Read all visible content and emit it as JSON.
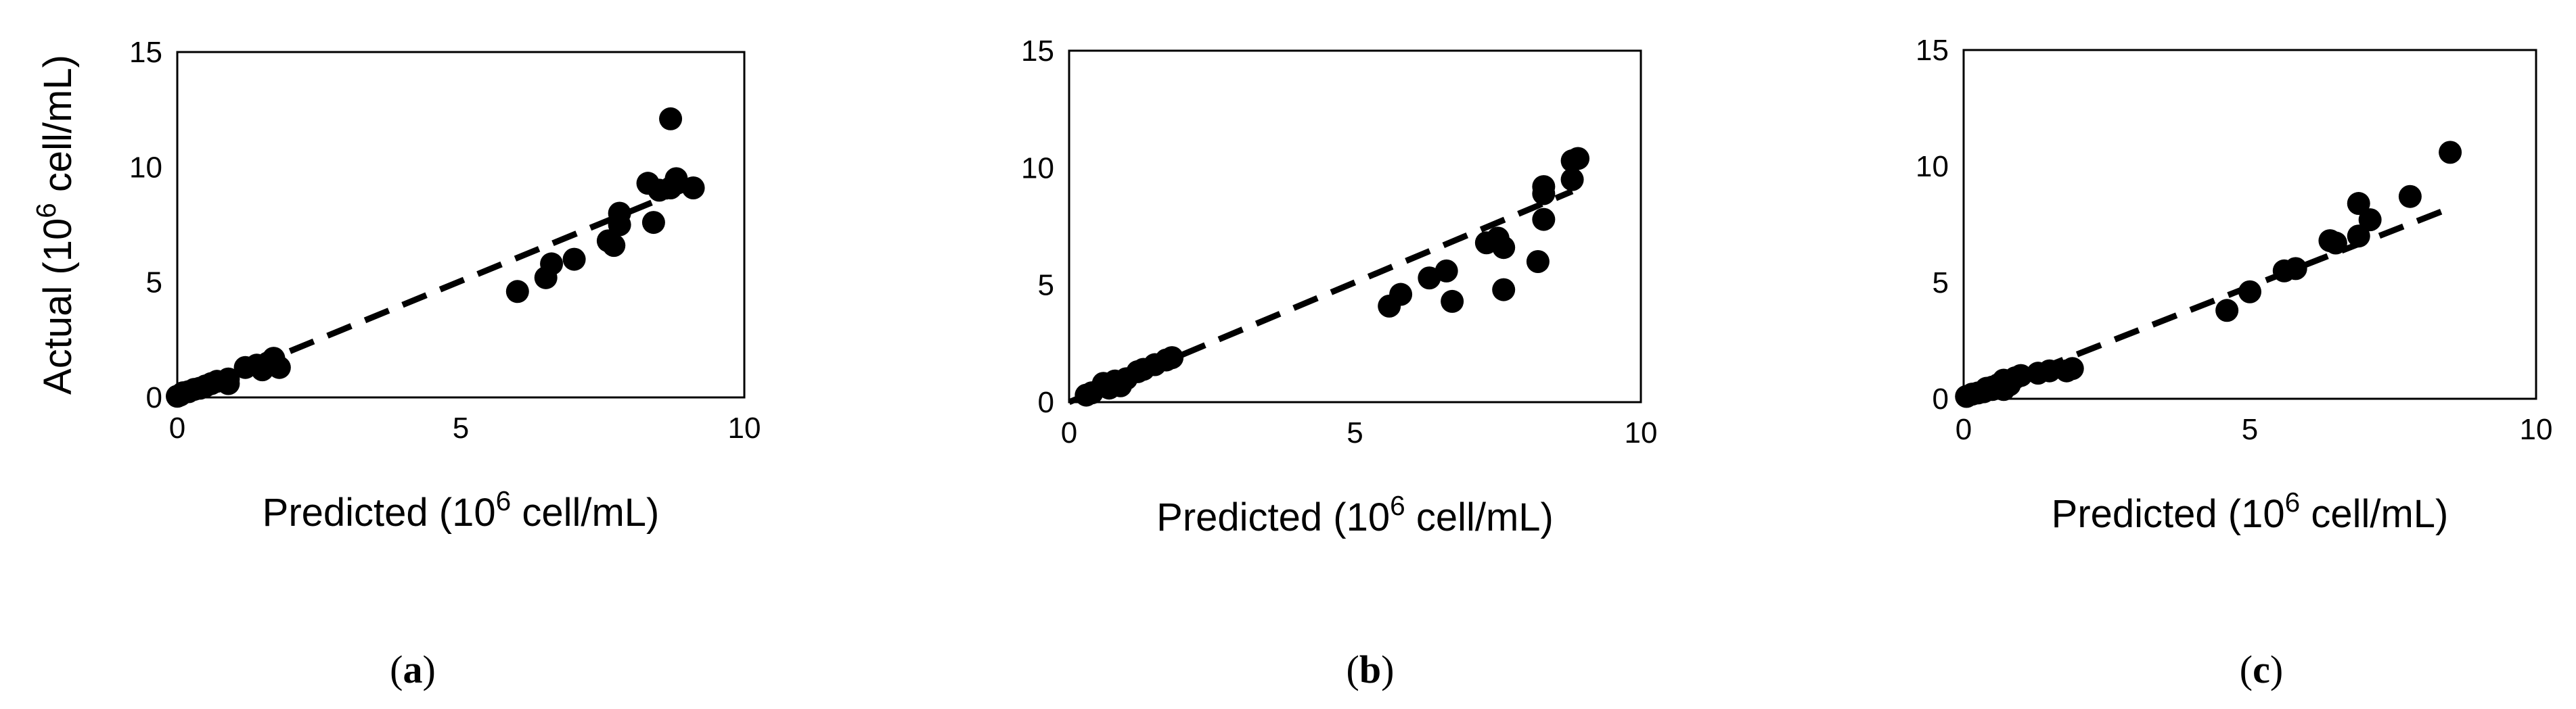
{
  "chart_data": [
    {
      "type": "scatter",
      "label": "(a)",
      "label_parts": {
        "open": "(",
        "letter": "a",
        "close": ")"
      },
      "ylabel_parts": {
        "pre": "Actual (10",
        "sup": "6",
        "post": " cell/mL)"
      },
      "xlabel_parts": {
        "pre": "Predicted (10",
        "sup": "6",
        "post": " cell/mL)"
      },
      "xlim": [
        0,
        10
      ],
      "ylim": [
        0,
        15
      ],
      "xticks": [
        "0",
        "5",
        "10"
      ],
      "yticks": [
        "0",
        "5",
        "10",
        "15"
      ],
      "grid": false,
      "trendline": {
        "style": "dashed",
        "x": [
          0,
          9.0
        ],
        "y": [
          0,
          9.1
        ]
      },
      "points": [
        [
          0.0,
          0.05
        ],
        [
          0.05,
          0.1
        ],
        [
          0.1,
          0.2
        ],
        [
          0.2,
          0.25
        ],
        [
          0.3,
          0.35
        ],
        [
          0.4,
          0.4
        ],
        [
          0.5,
          0.5
        ],
        [
          0.6,
          0.6
        ],
        [
          0.7,
          0.7
        ],
        [
          0.9,
          0.8
        ],
        [
          0.9,
          0.6
        ],
        [
          1.2,
          1.3
        ],
        [
          1.4,
          1.4
        ],
        [
          1.5,
          1.2
        ],
        [
          1.6,
          1.5
        ],
        [
          1.7,
          1.7
        ],
        [
          1.8,
          1.3
        ],
        [
          6.0,
          4.6
        ],
        [
          6.5,
          5.2
        ],
        [
          6.6,
          5.8
        ],
        [
          7.0,
          6.0
        ],
        [
          7.6,
          6.8
        ],
        [
          7.7,
          6.6
        ],
        [
          7.8,
          7.5
        ],
        [
          7.8,
          8.0
        ],
        [
          8.3,
          9.3
        ],
        [
          8.4,
          7.6
        ],
        [
          8.5,
          9.0
        ],
        [
          8.7,
          9.1
        ],
        [
          8.7,
          12.1
        ],
        [
          8.8,
          9.5
        ],
        [
          9.1,
          9.1
        ]
      ]
    },
    {
      "type": "scatter",
      "label": "(b)",
      "label_parts": {
        "open": "(",
        "letter": "b",
        "close": ")"
      },
      "ylabel_parts": {
        "pre": "",
        "sup": "",
        "post": ""
      },
      "xlabel_parts": {
        "pre": "Predicted (10",
        "sup": "6",
        "post": " cell/mL)"
      },
      "xlim": [
        0,
        10
      ],
      "ylim": [
        0,
        15
      ],
      "xticks": [
        "0",
        "5",
        "10"
      ],
      "yticks": [
        "0",
        "5",
        "10",
        "15"
      ],
      "grid": false,
      "trendline": {
        "style": "dashed",
        "x": [
          0,
          8.8
        ],
        "y": [
          0,
          9.0
        ]
      },
      "points": [
        [
          0.3,
          0.3
        ],
        [
          0.4,
          0.4
        ],
        [
          0.6,
          0.8
        ],
        [
          0.7,
          0.6
        ],
        [
          0.8,
          0.9
        ],
        [
          0.9,
          0.7
        ],
        [
          1.0,
          1.0
        ],
        [
          1.2,
          1.3
        ],
        [
          1.3,
          1.4
        ],
        [
          1.5,
          1.6
        ],
        [
          1.7,
          1.8
        ],
        [
          1.8,
          1.9
        ],
        [
          5.6,
          4.1
        ],
        [
          5.8,
          4.6
        ],
        [
          6.3,
          5.3
        ],
        [
          6.6,
          5.6
        ],
        [
          6.7,
          4.3
        ],
        [
          7.3,
          6.8
        ],
        [
          7.5,
          7.0
        ],
        [
          7.6,
          4.8
        ],
        [
          7.6,
          6.6
        ],
        [
          8.2,
          6.0
        ],
        [
          8.3,
          7.8
        ],
        [
          8.3,
          8.9
        ],
        [
          8.3,
          9.2
        ],
        [
          8.8,
          9.5
        ],
        [
          8.8,
          10.3
        ],
        [
          8.9,
          10.4
        ]
      ]
    },
    {
      "type": "scatter",
      "label": "(c)",
      "label_parts": {
        "open": "(",
        "letter": "c",
        "close": ")"
      },
      "ylabel_parts": {
        "pre": "",
        "sup": "",
        "post": ""
      },
      "xlabel_parts": {
        "pre": "Predicted (10",
        "sup": "6",
        "post": " cell/mL)"
      },
      "xlim": [
        0,
        10
      ],
      "ylim": [
        0,
        15
      ],
      "xticks": [
        "0",
        "5",
        "10"
      ],
      "yticks": [
        "0",
        "5",
        "10",
        "15"
      ],
      "grid": false,
      "trendline": {
        "style": "dashed",
        "x": [
          0,
          8.5
        ],
        "y": [
          0,
          8.2
        ]
      },
      "points": [
        [
          0.05,
          0.1
        ],
        [
          0.15,
          0.2
        ],
        [
          0.25,
          0.25
        ],
        [
          0.35,
          0.3
        ],
        [
          0.4,
          0.45
        ],
        [
          0.5,
          0.4
        ],
        [
          0.5,
          0.5
        ],
        [
          0.6,
          0.6
        ],
        [
          0.7,
          0.8
        ],
        [
          0.7,
          0.4
        ],
        [
          0.8,
          0.6
        ],
        [
          0.9,
          0.9
        ],
        [
          1.0,
          1.0
        ],
        [
          1.3,
          1.1
        ],
        [
          1.5,
          1.2
        ],
        [
          1.8,
          1.2
        ],
        [
          1.9,
          1.3
        ],
        [
          4.6,
          3.8
        ],
        [
          5.0,
          4.6
        ],
        [
          5.6,
          5.5
        ],
        [
          5.8,
          5.6
        ],
        [
          6.4,
          6.8
        ],
        [
          6.5,
          6.7
        ],
        [
          6.9,
          7.0
        ],
        [
          6.9,
          8.4
        ],
        [
          7.1,
          7.7
        ],
        [
          7.8,
          8.7
        ],
        [
          8.5,
          10.6
        ]
      ]
    }
  ]
}
